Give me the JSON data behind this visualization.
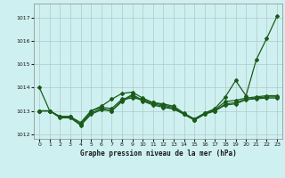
{
  "title": "Graphe pression niveau de la mer (hPa)",
  "bg_color": "#cff0f0",
  "grid_color": "#b0c8c8",
  "line_color": "#1a5c1a",
  "xlim": [
    -0.5,
    23.5
  ],
  "ylim": [
    1011.8,
    1017.6
  ],
  "yticks": [
    1012,
    1013,
    1014,
    1015,
    1016,
    1017
  ],
  "xticks": [
    0,
    1,
    2,
    3,
    4,
    5,
    6,
    7,
    8,
    9,
    10,
    11,
    12,
    13,
    14,
    15,
    16,
    17,
    18,
    19,
    20,
    21,
    22,
    23
  ],
  "series": [
    [
      1014.0,
      1013.0,
      1012.75,
      1012.75,
      1012.4,
      1013.0,
      1013.2,
      1013.5,
      1013.75,
      1013.8,
      1013.55,
      1013.35,
      1013.3,
      1013.2,
      1012.9,
      1012.65,
      1012.9,
      1013.1,
      1013.6,
      1014.3,
      1013.65,
      1015.2,
      1016.1,
      1017.05
    ],
    [
      1013.0,
      1013.0,
      1012.75,
      1012.75,
      1012.5,
      1013.0,
      1013.15,
      1013.1,
      1013.5,
      1013.55,
      1013.5,
      1013.35,
      1013.25,
      1013.15,
      1012.85,
      1012.65,
      1012.9,
      1013.05,
      1013.4,
      1013.45,
      1013.55,
      1013.6,
      1013.65,
      1013.65
    ],
    [
      1013.0,
      1013.0,
      1012.75,
      1012.75,
      1012.42,
      1012.9,
      1013.1,
      1013.0,
      1013.45,
      1013.7,
      1013.45,
      1013.3,
      1013.2,
      1013.1,
      1012.88,
      1012.62,
      1012.88,
      1013.0,
      1013.3,
      1013.35,
      1013.5,
      1013.55,
      1013.6,
      1013.6
    ],
    [
      1013.0,
      1013.0,
      1012.7,
      1012.7,
      1012.38,
      1012.85,
      1013.05,
      1013.0,
      1013.4,
      1013.65,
      1013.42,
      1013.25,
      1013.15,
      1013.08,
      1012.85,
      1012.6,
      1012.85,
      1013.0,
      1013.25,
      1013.3,
      1013.48,
      1013.52,
      1013.55,
      1013.55
    ]
  ]
}
